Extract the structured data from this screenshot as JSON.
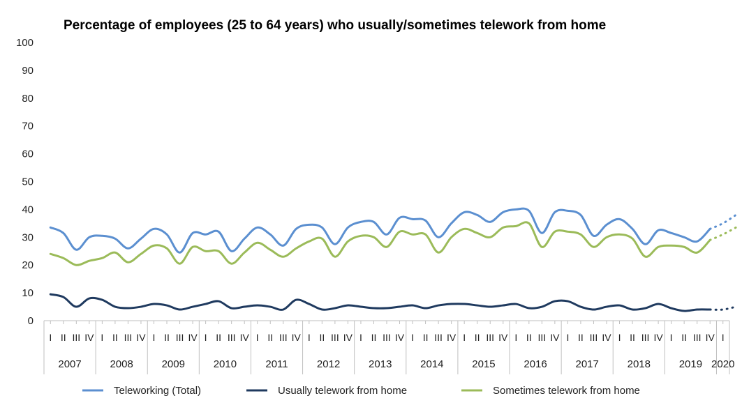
{
  "chart_data": {
    "type": "line",
    "title": "Percentage of employees (25 to 64 years) who usually/sometimes telework from home",
    "xlabel": "",
    "ylabel": "",
    "ylim": [
      0,
      100
    ],
    "yticks": [
      0,
      10,
      20,
      30,
      40,
      50,
      60,
      70,
      80,
      90,
      100
    ],
    "grid": false,
    "legend_position": "bottom",
    "quarter_labels": [
      "I",
      "II",
      "III",
      "IV"
    ],
    "years": [
      "2007",
      "2008",
      "2009",
      "2010",
      "2011",
      "2012",
      "2013",
      "2014",
      "2015",
      "2016",
      "2017",
      "2018",
      "2019",
      "2020"
    ],
    "year_quarters": [
      4,
      4,
      4,
      4,
      4,
      4,
      4,
      4,
      4,
      4,
      4,
      4,
      4,
      1
    ],
    "projected_points": 2,
    "series": [
      {
        "name": "Teleworking (Total)",
        "color": "#5b8fd0",
        "values": [
          33.5,
          31.5,
          25.5,
          30.0,
          30.5,
          29.5,
          26.0,
          29.5,
          33.0,
          31.0,
          24.5,
          31.5,
          31.0,
          32.0,
          25.0,
          29.5,
          33.5,
          31.0,
          27.0,
          33.0,
          34.5,
          33.5,
          27.5,
          33.5,
          35.5,
          35.5,
          31.0,
          37.0,
          36.5,
          36.0,
          30.0,
          35.0,
          39.0,
          38.0,
          35.5,
          39.0,
          40.0,
          39.5,
          31.5,
          39.0,
          39.5,
          38.0,
          30.5,
          34.5,
          36.5,
          33.0,
          27.5,
          32.5,
          31.5,
          30.0,
          28.5,
          33.0,
          35.0,
          38.0
        ]
      },
      {
        "name": "Usually telework from home",
        "color": "#1f3a5f",
        "values": [
          9.5,
          8.5,
          5.0,
          8.0,
          7.5,
          5.0,
          4.5,
          5.0,
          6.0,
          5.5,
          4.0,
          5.0,
          6.0,
          7.0,
          4.5,
          5.0,
          5.5,
          5.0,
          4.0,
          7.5,
          6.0,
          4.0,
          4.5,
          5.5,
          5.0,
          4.5,
          4.5,
          5.0,
          5.5,
          4.5,
          5.5,
          6.0,
          6.0,
          5.5,
          5.0,
          5.5,
          6.0,
          4.5,
          5.0,
          7.0,
          7.0,
          5.0,
          4.0,
          5.0,
          5.5,
          4.0,
          4.5,
          6.0,
          4.5,
          3.5,
          4.0,
          4.0,
          4.0,
          5.0
        ]
      },
      {
        "name": "Sometimes telework from home",
        "color": "#9bbb59",
        "values": [
          24.0,
          22.5,
          20.0,
          21.5,
          22.5,
          24.5,
          21.0,
          24.0,
          27.0,
          26.0,
          20.5,
          26.5,
          25.0,
          25.0,
          20.5,
          24.5,
          28.0,
          25.5,
          23.0,
          26.0,
          28.5,
          29.5,
          23.0,
          28.5,
          30.5,
          30.0,
          26.5,
          32.0,
          31.0,
          31.0,
          24.5,
          30.0,
          33.0,
          31.5,
          30.0,
          33.5,
          34.0,
          35.0,
          26.5,
          32.0,
          32.0,
          31.0,
          26.5,
          30.0,
          31.0,
          29.5,
          23.0,
          26.5,
          27.0,
          26.5,
          24.5,
          29.0,
          31.0,
          33.5
        ]
      }
    ]
  }
}
